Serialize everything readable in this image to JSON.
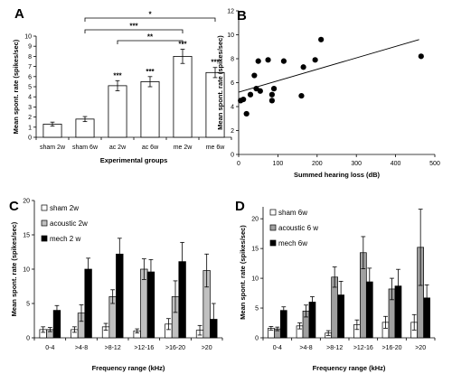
{
  "chart_data": [
    {
      "panel": "A",
      "type": "bar",
      "categories": [
        "sham 2w",
        "sham 6w",
        "ac 2w",
        "ac 6w",
        "me 2w",
        "me 6w"
      ],
      "values": [
        1.3,
        1.8,
        5.1,
        5.5,
        8.0,
        6.4
      ],
      "errors": [
        0.2,
        0.25,
        0.5,
        0.5,
        0.7,
        0.5
      ],
      "stars": [
        "",
        "",
        "***",
        "***",
        "***",
        "***"
      ],
      "brackets": [
        {
          "from": 2,
          "to": 4,
          "label": "**"
        },
        {
          "from": 1,
          "to": 4,
          "label": "***"
        },
        {
          "from": 1,
          "to": 5,
          "label": "*"
        }
      ],
      "xlabel": "Experimental groups",
      "ylabel": "Mean spont. rate (spikes/sec)",
      "ylim": [
        0,
        10
      ],
      "yticks": [
        0,
        1,
        2,
        3,
        4,
        5,
        6,
        7,
        8,
        9,
        10
      ]
    },
    {
      "panel": "B",
      "type": "scatter",
      "points": [
        [
          5,
          4.5
        ],
        [
          12,
          4.6
        ],
        [
          20,
          3.4
        ],
        [
          30,
          5.0
        ],
        [
          40,
          6.6
        ],
        [
          45,
          5.5
        ],
        [
          50,
          7.8
        ],
        [
          55,
          5.3
        ],
        [
          75,
          7.9
        ],
        [
          85,
          4.5
        ],
        [
          85,
          5.0
        ],
        [
          90,
          5.5
        ],
        [
          115,
          7.8
        ],
        [
          160,
          4.9
        ],
        [
          165,
          7.3
        ],
        [
          195,
          7.9
        ],
        [
          210,
          9.6
        ],
        [
          465,
          8.2
        ]
      ],
      "trend": {
        "x": [
          0,
          460
        ],
        "y": [
          5.2,
          9.6
        ]
      },
      "xlabel": "Summed hearing loss (dB)",
      "ylabel": "Mean spont. rate (spikes/sec)",
      "xlim": [
        0,
        500
      ],
      "ylim": [
        0,
        12
      ],
      "xticks": [
        0,
        100,
        200,
        300,
        400,
        500
      ],
      "yticks": [
        0,
        2,
        4,
        6,
        8,
        10,
        12
      ]
    },
    {
      "panel": "C",
      "type": "bar",
      "categories": [
        "0-4",
        ">4-8",
        ">8-12",
        ">12-16",
        ">16-20",
        ">20"
      ],
      "series": [
        {
          "name": "sham 2w",
          "color": "#ffffff",
          "values": [
            1.2,
            1.2,
            1.6,
            1.0,
            2.0,
            1.1
          ],
          "errors": [
            0.4,
            0.4,
            0.5,
            0.3,
            0.8,
            0.7
          ]
        },
        {
          "name": "acoustic 2w",
          "color": "#c0c0c0",
          "values": [
            1.2,
            3.6,
            6.0,
            10.0,
            6.0,
            9.8
          ],
          "errors": [
            0.3,
            1.2,
            1.0,
            1.5,
            2.3,
            2.4
          ]
        },
        {
          "name": "mech 2 w",
          "color": "#000000",
          "values": [
            4.0,
            10.0,
            12.2,
            9.6,
            11.1,
            2.7
          ],
          "errors": [
            0.7,
            1.6,
            2.3,
            1.8,
            2.8,
            2.3
          ]
        }
      ],
      "xlabel": "Frequency range (kHz)",
      "ylabel": "Mean spont. rate (spikes/sec)",
      "ylim": [
        0,
        20
      ],
      "yticks": [
        0,
        5,
        10,
        15,
        20
      ]
    },
    {
      "panel": "D",
      "type": "bar",
      "categories": [
        "0-4",
        ">4-8",
        ">8-12",
        ">12-16",
        ">16-20",
        ">20"
      ],
      "series": [
        {
          "name": "sham 6w",
          "color": "#ffffff",
          "values": [
            1.6,
            2.0,
            0.8,
            2.2,
            2.6,
            2.6
          ],
          "errors": [
            0.3,
            0.5,
            0.4,
            0.8,
            1.0,
            1.3
          ]
        },
        {
          "name": "acoustic 6 w",
          "color": "#a0a0a0",
          "values": [
            1.5,
            4.5,
            10.2,
            14.3,
            8.2,
            15.2
          ],
          "errors": [
            0.3,
            1.0,
            1.7,
            2.7,
            1.8,
            6.4
          ]
        },
        {
          "name": "mech 6w",
          "color": "#000000",
          "values": [
            4.6,
            6.0,
            7.2,
            9.4,
            8.7,
            6.7
          ],
          "errors": [
            0.6,
            0.9,
            2.3,
            2.3,
            2.8,
            2.2
          ]
        }
      ],
      "xlabel": "Frequency range (kHz)",
      "ylabel": "Mean spont. rate (spikes/sec)",
      "ylim": [
        0,
        22
      ],
      "yticks": [
        0,
        5,
        10,
        15,
        20
      ]
    }
  ]
}
